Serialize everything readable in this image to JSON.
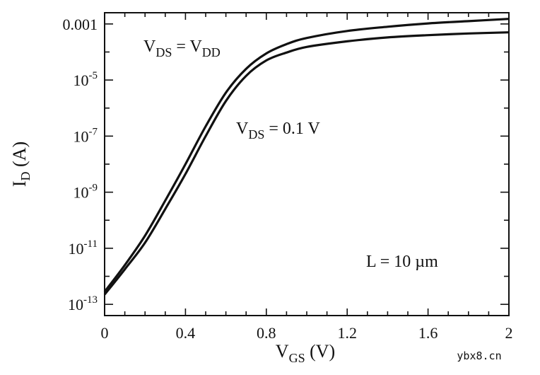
{
  "chart_data": {
    "type": "line",
    "title": "",
    "xlabel": {
      "main": "V",
      "sub": "GS",
      "rest": " (V)"
    },
    "ylabel": {
      "main": "I",
      "sub": "D",
      "rest": " (A)"
    },
    "xlim": [
      0,
      2
    ],
    "ylim_log10": [
      -13.4,
      -2.6
    ],
    "x_ticks": [
      {
        "value": 0,
        "label": "0"
      },
      {
        "value": 0.4,
        "label": "0.4"
      },
      {
        "value": 0.8,
        "label": "0.8"
      },
      {
        "value": 1.2,
        "label": "1.2"
      },
      {
        "value": 1.6,
        "label": "1.6"
      },
      {
        "value": 2,
        "label": "2"
      }
    ],
    "y_ticks": [
      {
        "log10": -3,
        "base": "0.001",
        "exp": ""
      },
      {
        "log10": -5,
        "base": "10",
        "exp": "-5"
      },
      {
        "log10": -7,
        "base": "10",
        "exp": "-7"
      },
      {
        "log10": -9,
        "base": "10",
        "exp": "-9"
      },
      {
        "log10": -11,
        "base": "10",
        "exp": "-11"
      },
      {
        "log10": -13,
        "base": "10",
        "exp": "-13"
      }
    ],
    "series": [
      {
        "name": "VDS = VDD",
        "x": [
          0,
          0.1,
          0.2,
          0.3,
          0.4,
          0.5,
          0.6,
          0.7,
          0.8,
          0.9,
          1.0,
          1.2,
          1.4,
          1.6,
          1.8,
          2.0
        ],
        "log10_y": [
          -12.55,
          -11.6,
          -10.55,
          -9.3,
          -8.0,
          -6.65,
          -5.45,
          -4.6,
          -4.05,
          -3.72,
          -3.5,
          -3.25,
          -3.1,
          -2.98,
          -2.9,
          -2.82
        ]
      },
      {
        "name": "VDS = 0.1 V",
        "x": [
          0,
          0.1,
          0.2,
          0.3,
          0.4,
          0.5,
          0.6,
          0.7,
          0.8,
          0.9,
          1.0,
          1.2,
          1.4,
          1.6,
          1.8,
          2.0
        ],
        "log10_y": [
          -12.65,
          -11.75,
          -10.8,
          -9.6,
          -8.35,
          -7.0,
          -5.75,
          -4.85,
          -4.3,
          -4.02,
          -3.82,
          -3.62,
          -3.48,
          -3.4,
          -3.34,
          -3.3
        ]
      }
    ]
  },
  "annotations": {
    "vdd": {
      "v": "V",
      "sub1": "DS",
      "eq": " = V",
      "sub2": "DD"
    },
    "vds01": {
      "v": "V",
      "sub1": "DS",
      "rest": " = 0.1 V"
    },
    "length": {
      "text": "L = 10 µm"
    }
  },
  "watermark": {
    "text": "ybx8.cn"
  }
}
